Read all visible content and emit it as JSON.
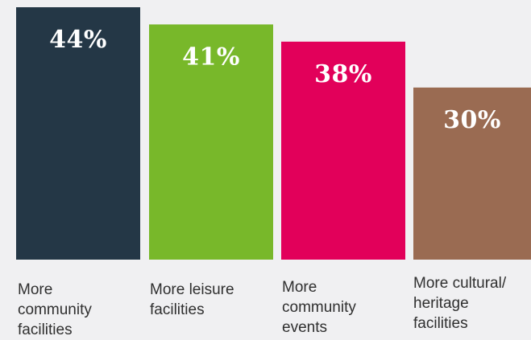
{
  "chart_data": {
    "type": "bar",
    "categories": [
      "More\ncommunity\nfacilities",
      "More leisure\nfacilities",
      "More\ncommunity\nevents",
      "More cultural/\nheritage\nfacilities"
    ],
    "values": [
      44,
      41,
      38,
      30
    ],
    "value_labels": [
      "44%",
      "41%",
      "38%",
      "30%"
    ],
    "colors": [
      "#243746",
      "#78b82a",
      "#e2005a",
      "#9a6b52"
    ],
    "title": "",
    "xlabel": "",
    "ylabel": "",
    "ylim": [
      0,
      44
    ],
    "grid": false,
    "legend": "none"
  }
}
